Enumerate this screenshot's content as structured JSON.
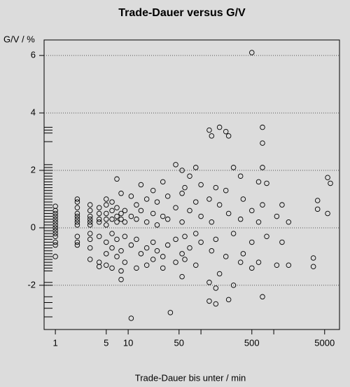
{
  "chart_data": {
    "type": "scatter",
    "title": "Trade-Dauer versus G/V",
    "x_label": "Trade-Dauer bis unter / min",
    "y_label": "G/V / %",
    "x_scale": "log",
    "grid": true,
    "color": "#000000",
    "xlim": [
      0.7,
      8000
    ],
    "ylim": [
      -3.54,
      6.54
    ],
    "xticks": [
      1,
      5,
      10,
      50,
      {
        "value": 100,
        "label": null
      },
      500,
      {
        "value": 1000,
        "label": null
      },
      5000
    ],
    "yticks": [
      -2,
      0,
      2,
      4,
      6
    ],
    "x": [
      1,
      1,
      1,
      1,
      1,
      1,
      1,
      1,
      1,
      1,
      1,
      1,
      1,
      1,
      2,
      2,
      2,
      2,
      2,
      2,
      2,
      2,
      2,
      2,
      2,
      3,
      3,
      3,
      3,
      3,
      3,
      3,
      3,
      3,
      3,
      4,
      4,
      4,
      4,
      4,
      4,
      4,
      5,
      5,
      5,
      5,
      5,
      5,
      5,
      5,
      6,
      6,
      6,
      6,
      6,
      6,
      7,
      7,
      7,
      7,
      7,
      7,
      8,
      8,
      8,
      8,
      8,
      8,
      9,
      9,
      9,
      9,
      11,
      11,
      11,
      11,
      13,
      13,
      13,
      13,
      15,
      15,
      15,
      18,
      18,
      18,
      18,
      22,
      22,
      22,
      22,
      25,
      25,
      25,
      30,
      30,
      30,
      30,
      35,
      35,
      35,
      38,
      45,
      45,
      45,
      45,
      55,
      55,
      55,
      55,
      55,
      60,
      60,
      60,
      70,
      70,
      70,
      85,
      85,
      85,
      85,
      100,
      100,
      100,
      130,
      130,
      130,
      130,
      140,
      140,
      140,
      160,
      160,
      160,
      160,
      180,
      180,
      180,
      220,
      220,
      220,
      240,
      240,
      240,
      280,
      280,
      280,
      350,
      350,
      350,
      380,
      380,
      500,
      500,
      500,
      500,
      620,
      620,
      620,
      700,
      700,
      700,
      700,
      700,
      800,
      800,
      1100,
      1100,
      1300,
      1300,
      1600,
      1600,
      3500,
      3500,
      4000,
      4000,
      5500,
      5500,
      6000
    ],
    "y": [
      0.75,
      0.6,
      0.5,
      0.4,
      0.3,
      0.2,
      0.1,
      0,
      -0.1,
      -0.2,
      -0.3,
      -0.5,
      -0.6,
      -1.0,
      1.0,
      0.9,
      0.7,
      0.5,
      0.4,
      0.3,
      0.2,
      0.1,
      -0.3,
      -0.5,
      -0.6,
      0.8,
      0.6,
      0.4,
      0.3,
      0.2,
      0.1,
      -0.2,
      -0.4,
      -0.7,
      -1.1,
      0.7,
      0.5,
      0.3,
      0.2,
      -0.3,
      -1.2,
      -1.35,
      1.0,
      0.8,
      0.5,
      0.3,
      0.1,
      -0.5,
      -0.9,
      -1.3,
      0.9,
      0.6,
      0.3,
      -0.2,
      -0.7,
      -1.4,
      1.7,
      0.7,
      0.4,
      0.2,
      -0.4,
      -1.0,
      1.2,
      0.5,
      0.3,
      -0.8,
      -1.5,
      -1.8,
      0.6,
      0.2,
      -0.3,
      -1.2,
      1.1,
      0.4,
      -0.6,
      -3.15,
      0.8,
      0.3,
      -0.4,
      -1.4,
      1.5,
      0.6,
      -0.9,
      1.0,
      0.2,
      -0.7,
      -1.3,
      1.3,
      0.5,
      -0.5,
      -1.1,
      0.9,
      0.1,
      -0.8,
      1.6,
      0.4,
      -1.0,
      -1.4,
      1.1,
      0.3,
      -0.6,
      -2.95,
      2.2,
      0.7,
      -0.4,
      -1.2,
      2.0,
      1.2,
      0.2,
      -0.9,
      -1.7,
      1.4,
      -0.3,
      -1.1,
      1.8,
      0.6,
      -0.7,
      2.1,
      0.9,
      -0.2,
      -1.3,
      1.5,
      0.4,
      -0.5,
      3.4,
      1.0,
      -1.9,
      -2.55,
      3.2,
      0.2,
      -0.8,
      1.4,
      -0.4,
      -2.1,
      -2.65,
      3.5,
      0.8,
      -1.6,
      3.35,
      1.3,
      -1.0,
      3.2,
      0.5,
      -2.5,
      2.1,
      -0.2,
      -2.0,
      1.8,
      0.3,
      -1.2,
      1.0,
      -0.9,
      6.1,
      0.6,
      -0.5,
      -1.4,
      1.6,
      0.2,
      -1.2,
      2.1,
      2.95,
      3.5,
      0.8,
      -2.4,
      1.55,
      -0.3,
      0.4,
      -1.3,
      0.8,
      -0.5,
      0.2,
      -1.3,
      -1.05,
      -1.35,
      0.65,
      0.95,
      1.75,
      0.5,
      1.55
    ],
    "rug": [
      3.5,
      3.4,
      3.3,
      3.0,
      2.2,
      2.1,
      2.0,
      1.9,
      1.8,
      1.7,
      1.6,
      1.5,
      1.4,
      1.3,
      1.2,
      1.1,
      1.0,
      0.9,
      0.8,
      0.7,
      0.6,
      0.5,
      0.4,
      0.3,
      0.2,
      0.1,
      0,
      -0.1,
      -0.2,
      -0.3,
      -0.4,
      -0.5,
      -0.6,
      -0.7,
      -0.8,
      -0.9,
      -1.0,
      -1.1,
      -1.2,
      -1.3,
      -1.4,
      -1.5,
      -1.9,
      -2.0,
      -2.4,
      -2.6,
      -2.8,
      -3.1
    ]
  }
}
